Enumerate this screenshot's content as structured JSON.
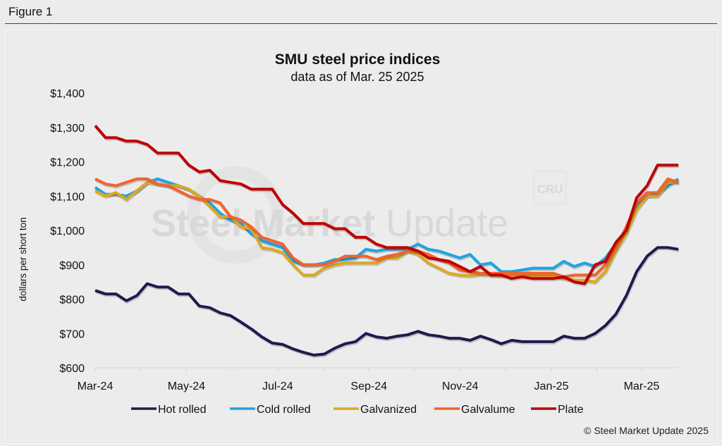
{
  "figure_label": "Figure 1",
  "chart_data": {
    "type": "line",
    "title": "SMU steel price indices",
    "subtitle": "data as of Mar. 25 2025",
    "ylabel": "dollars per short ton",
    "xlabel": "",
    "ylim": [
      600,
      1400
    ],
    "yticks": [
      600,
      700,
      800,
      900,
      1000,
      1100,
      1200,
      1300,
      1400
    ],
    "ytick_labels": [
      "$600",
      "$700",
      "$800",
      "$900",
      "$1,000",
      "$1,100",
      "$1,200",
      "$1,300",
      "$1,400"
    ],
    "x_unit": "weeks since Mar-24",
    "xlim": [
      0,
      55.6
    ],
    "x_step": 0.993,
    "xticks_major": [
      0,
      8.7,
      17.4,
      26.1,
      34.8,
      43.5,
      52.1
    ],
    "xtick_labels": [
      "Mar-24",
      "May-24",
      "Jul-24",
      "Sep-24",
      "Nov-24",
      "Jan-25",
      "Mar-25"
    ],
    "xticks_minor": [
      4.35,
      13.05,
      21.75,
      30.45,
      39.15,
      47.85
    ],
    "grid": false,
    "legend_position": "bottom",
    "series": [
      {
        "name": "Hot rolled",
        "color": "#1f1a4f",
        "values": [
          825,
          815,
          815,
          795,
          810,
          845,
          835,
          835,
          815,
          815,
          780,
          775,
          760,
          752,
          733,
          713,
          690,
          672,
          668,
          655,
          645,
          637,
          640,
          657,
          670,
          676,
          700,
          690,
          686,
          692,
          696,
          706,
          696,
          692,
          686,
          686,
          680,
          692,
          682,
          670,
          680,
          676,
          676,
          676,
          676,
          692,
          686,
          686,
          700,
          723,
          756,
          810,
          880,
          925,
          950,
          950,
          945
        ]
      },
      {
        "name": "Cold rolled",
        "color": "#1ea4df",
        "values": [
          1125,
          1105,
          1105,
          1100,
          1115,
          1140,
          1150,
          1140,
          1130,
          1120,
          1100,
          1080,
          1050,
          1030,
          1020,
          990,
          970,
          960,
          950,
          910,
          900,
          900,
          905,
          915,
          915,
          920,
          945,
          940,
          945,
          945,
          945,
          960,
          945,
          940,
          930,
          920,
          930,
          900,
          905,
          880,
          880,
          885,
          890,
          890,
          890,
          910,
          895,
          905,
          895,
          920,
          960,
          1000,
          1070,
          1100,
          1105,
          1130,
          1150
        ]
      },
      {
        "name": "Galvanized",
        "color": "#dea71f",
        "values": [
          1115,
          1100,
          1110,
          1090,
          1115,
          1140,
          1135,
          1130,
          1130,
          1120,
          1100,
          1070,
          1040,
          1040,
          1010,
          1005,
          950,
          945,
          935,
          900,
          870,
          870,
          890,
          900,
          905,
          905,
          905,
          905,
          920,
          920,
          940,
          930,
          905,
          890,
          875,
          870,
          868,
          872,
          870,
          868,
          870,
          870,
          868,
          868,
          868,
          860,
          855,
          855,
          850,
          880,
          940,
          990,
          1060,
          1100,
          1100,
          1140,
          1140
        ]
      },
      {
        "name": "Galvalume",
        "color": "#f2622e",
        "values": [
          1150,
          1135,
          1130,
          1140,
          1150,
          1150,
          1135,
          1130,
          1115,
          1100,
          1090,
          1090,
          1080,
          1040,
          1030,
          1010,
          980,
          970,
          960,
          920,
          900,
          900,
          900,
          910,
          925,
          925,
          925,
          915,
          925,
          930,
          940,
          940,
          930,
          915,
          905,
          885,
          880,
          875,
          875,
          875,
          875,
          875,
          875,
          875,
          875,
          865,
          870,
          870,
          870,
          900,
          950,
          1010,
          1080,
          1110,
          1110,
          1150,
          1140
        ]
      },
      {
        "name": "Plate",
        "color": "#c00000",
        "values": [
          1305,
          1270,
          1270,
          1260,
          1260,
          1250,
          1225,
          1225,
          1225,
          1190,
          1170,
          1175,
          1145,
          1140,
          1135,
          1120,
          1120,
          1120,
          1075,
          1050,
          1020,
          1020,
          1020,
          1005,
          1005,
          980,
          980,
          960,
          950,
          950,
          950,
          940,
          920,
          915,
          910,
          895,
          880,
          895,
          870,
          870,
          860,
          865,
          860,
          860,
          860,
          865,
          850,
          845,
          900,
          910,
          965,
          1000,
          1095,
          1130,
          1190,
          1190,
          1190
        ]
      }
    ]
  },
  "watermark": {
    "text": "Steel Market Update",
    "badge": "CRU"
  },
  "copyright": "© Steel Market Update 2025"
}
